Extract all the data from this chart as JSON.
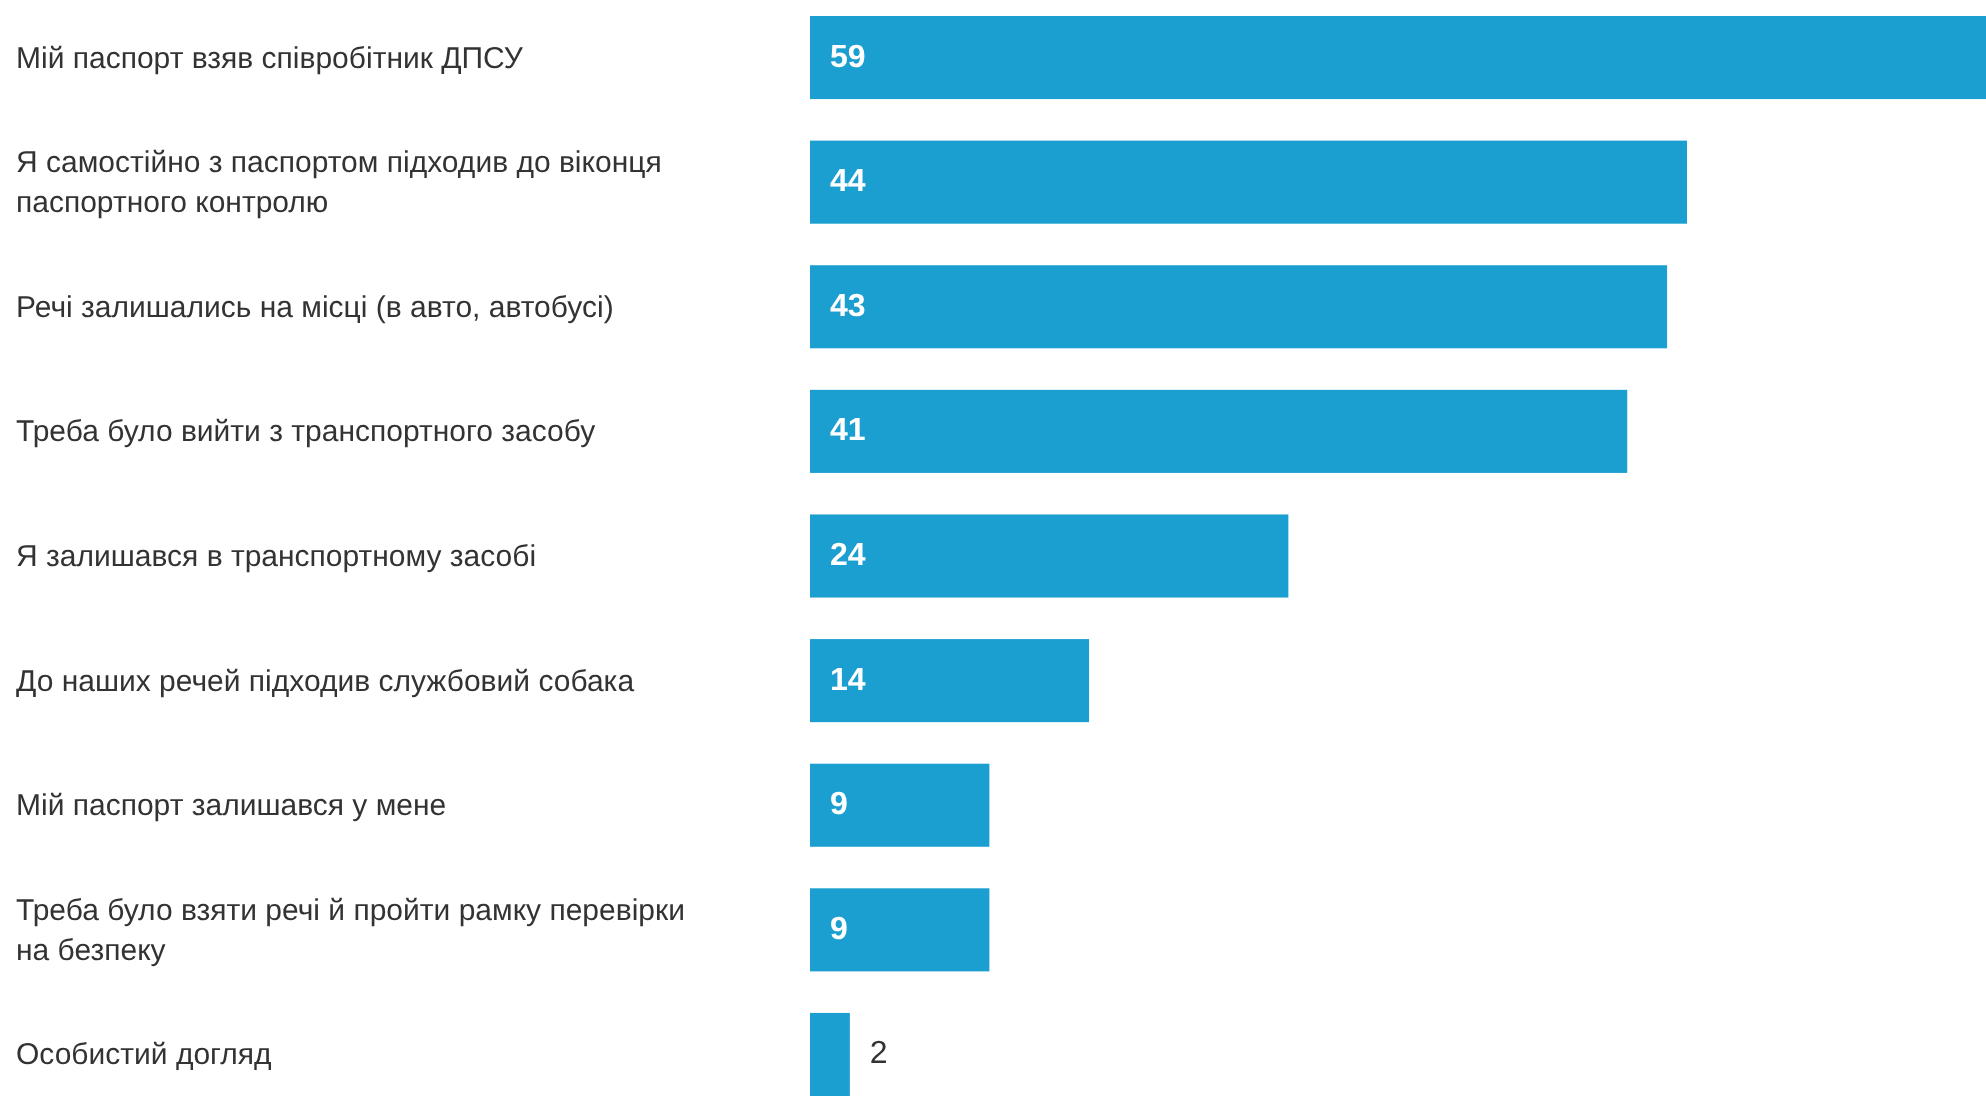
{
  "chart_data": {
    "type": "bar",
    "orientation": "horizontal",
    "data_labels": true,
    "color": "#1a9fd0",
    "categories": [
      "Мій паспорт взяв співробітник ДПСУ",
      "Я самостійно з паспортом підходив до віконця паспортного контролю",
      "Речі залишались на місці (в авто, автобусі)",
      "Треба було вийти з транспортного засобу",
      "Я залишався в транспортному засобі",
      "До наших речей підходив службовий собака",
      "Мій паспорт залишався у мене",
      "Треба було взяти речі й пройти рамку перевірки на безпеку",
      "Особистий догляд"
    ],
    "values": [
      59,
      44,
      43,
      41,
      24,
      14,
      9,
      9,
      2
    ]
  }
}
